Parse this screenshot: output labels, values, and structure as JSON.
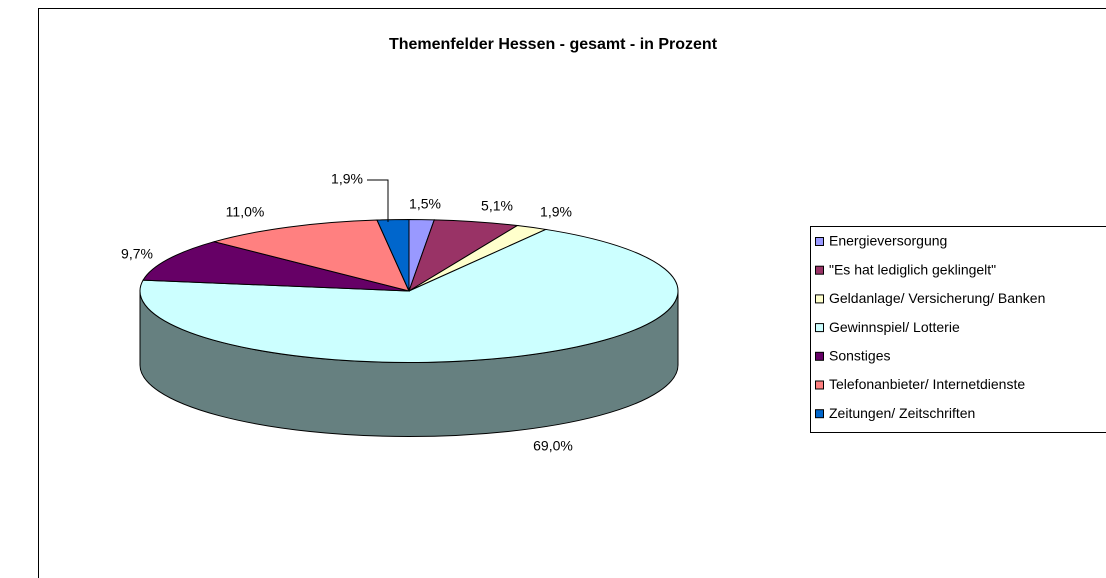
{
  "chart_data": {
    "type": "pie3d",
    "title": "Themenfelder  Hessen - gesamt - in Prozent",
    "categories": [
      "Energieversorgung",
      "\"Es hat lediglich geklingelt\"",
      "Geldanlage/ Versicherung/ Banken",
      "Gewinnspiel/ Lotterie",
      "Sonstiges",
      "Telefonanbieter/ Internetdienste",
      "Zeitungen/ Zeitschriften"
    ],
    "values": [
      1.5,
      5.1,
      1.9,
      69.0,
      9.7,
      11.0,
      1.9
    ],
    "value_labels": [
      "1,5%",
      "5,1%",
      "1,9%",
      "69,0%",
      "9,7%",
      "11,0%",
      "1,9%"
    ],
    "colors": [
      "#9999ff",
      "#993366",
      "#ffffcc",
      "#ccffff",
      "#660066",
      "#ff8080",
      "#0066cc"
    ],
    "legend": "right"
  }
}
